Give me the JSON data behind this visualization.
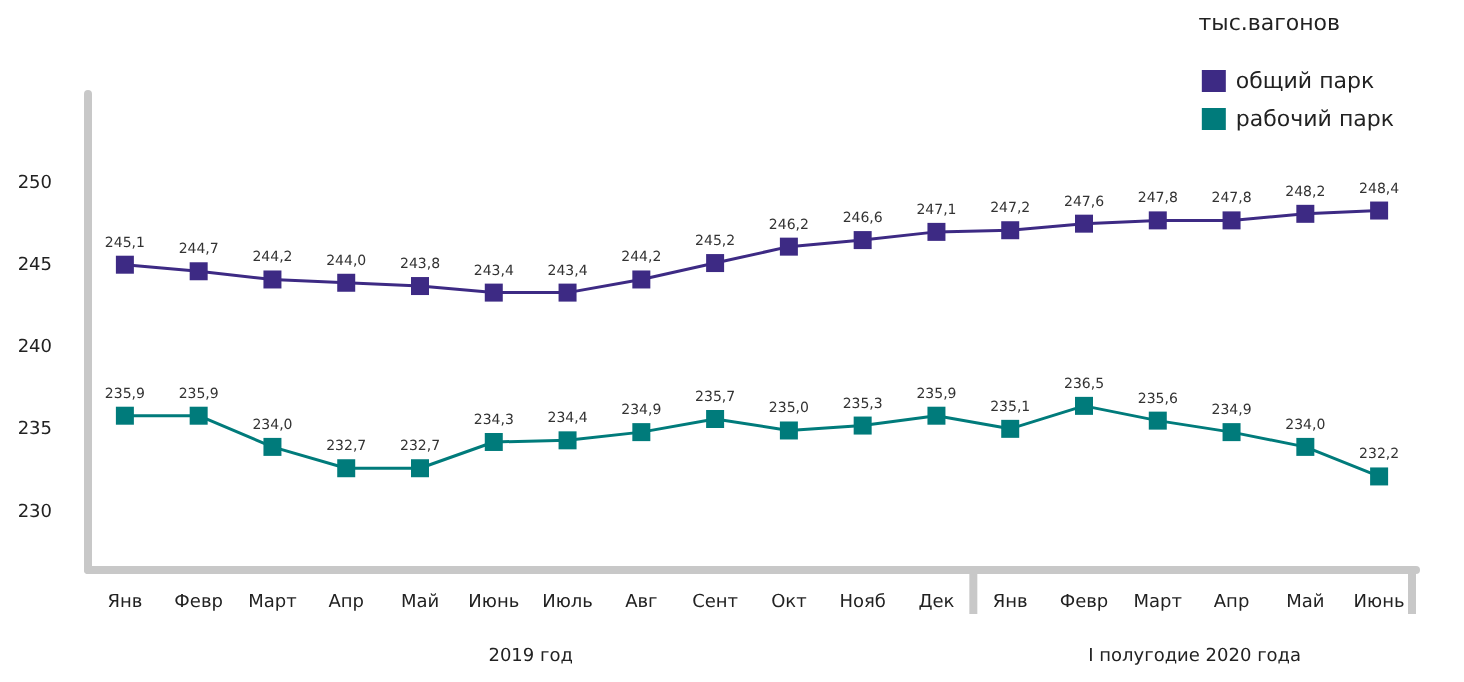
{
  "chart_data": {
    "type": "line",
    "legend_title": "тыс.вагонов",
    "categories": [
      "Янв",
      "Февр",
      "Март",
      "Апр",
      "Май",
      "Июнь",
      "Июль",
      "Авг",
      "Сент",
      "Окт",
      "Нояб",
      "Дек",
      "Янв",
      "Февр",
      "Март",
      "Апр",
      "Май",
      "Июнь"
    ],
    "series": [
      {
        "name": "общий парк",
        "color": "#3d2a84",
        "values": [
          245.1,
          244.7,
          244.2,
          244.0,
          243.8,
          243.4,
          243.4,
          244.2,
          245.2,
          246.2,
          246.6,
          247.1,
          247.2,
          247.6,
          247.8,
          247.8,
          248.2,
          248.4
        ],
        "value_labels": [
          "245,1",
          "244,7",
          "244,2",
          "244,0",
          "243,8",
          "243,4",
          "243,4",
          "244,2",
          "245,2",
          "246,2",
          "246,6",
          "247,1",
          "247,2",
          "247,6",
          "247,8",
          "247,8",
          "248,2",
          "248,4"
        ]
      },
      {
        "name": "рабочий парк",
        "color": "#007b7b",
        "values": [
          235.9,
          235.9,
          234.0,
          232.7,
          232.7,
          234.3,
          234.4,
          234.9,
          235.7,
          235.0,
          235.3,
          235.9,
          235.1,
          236.5,
          235.6,
          234.9,
          234.0,
          232.2
        ],
        "value_labels": [
          "235,9",
          "235,9",
          "234,0",
          "232,7",
          "232,7",
          "234,3",
          "234,4",
          "234,9",
          "235,7",
          "235,0",
          "235,3",
          "235,9",
          "235,1",
          "236,5",
          "235,6",
          "234,9",
          "234,0",
          "232,2"
        ]
      }
    ],
    "ylim": [
      226.5,
      255.5
    ],
    "yticks": [
      230,
      235,
      240,
      245,
      250
    ],
    "grid": false,
    "legend": "top right",
    "marker": "square",
    "line_style": "solid",
    "annotations": [
      "2019 год",
      "I полугодие 2020 года"
    ]
  }
}
